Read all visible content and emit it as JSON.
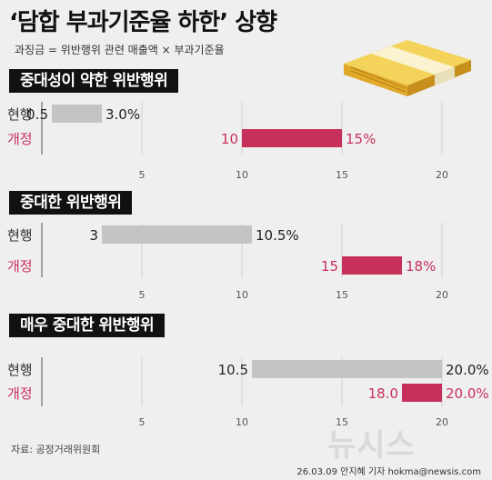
{
  "header": {
    "title": "‘담합 부과기준율 하한’ 상향",
    "formula": "과징금 = 위반행위 관련 매출액 × 부과기준율"
  },
  "source": "자료: 공정거래위원회",
  "credit": "26.03.09 안지혜 기자 hokma@newsis.com",
  "watermark": "뉴시스",
  "chart_data": [
    {
      "type": "bar",
      "title": "중대성이 약한 위반행위",
      "xlim": [
        0,
        20
      ],
      "ticks": [
        "5",
        "10",
        "15",
        "20"
      ],
      "rows": [
        {
          "name": "현행",
          "start": 0.5,
          "end": 3.0,
          "start_label": "0.5",
          "end_label": "3.0%",
          "color": "#c4c4c4"
        },
        {
          "name": "개정",
          "start": 10,
          "end": 15,
          "start_label": "10",
          "end_label": "15%",
          "color": "#c8305c"
        }
      ]
    },
    {
      "type": "bar",
      "title": "중대한 위반행위",
      "xlim": [
        0,
        20
      ],
      "ticks": [
        "5",
        "10",
        "15",
        "20"
      ],
      "rows": [
        {
          "name": "현행",
          "start": 3,
          "end": 10.5,
          "start_label": "3",
          "end_label": "10.5%",
          "color": "#c4c4c4"
        },
        {
          "name": "개정",
          "start": 15,
          "end": 18,
          "start_label": "15",
          "end_label": "18%",
          "color": "#c8305c"
        }
      ]
    },
    {
      "type": "bar",
      "title": "매우 중대한 위반행위",
      "xlim": [
        0,
        20
      ],
      "ticks": [
        "5",
        "10",
        "15",
        "20"
      ],
      "rows": [
        {
          "name": "현행",
          "start": 10.5,
          "end": 20.0,
          "start_label": "10.5",
          "end_label": "20.0%",
          "color": "#c4c4c4"
        },
        {
          "name": "개정",
          "start": 18.0,
          "end": 20.0,
          "start_label": "18.0",
          "end_label": "20.0%",
          "color": "#c8305c"
        }
      ]
    }
  ],
  "colors": {
    "current_bar": "#c4c4c4",
    "revised_bar": "#c8305c",
    "revised_label": "#c8305c",
    "section_bg": "#111111"
  }
}
